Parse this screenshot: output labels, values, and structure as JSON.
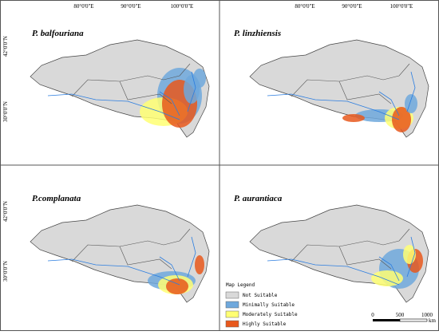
{
  "panels": [
    {
      "title": "P. balfouriana",
      "top_labels": [
        "80°0'0\"E",
        "90°0'0\"E",
        "100°0'0\"E"
      ],
      "left_labels": [
        "42°0'0\"N",
        "30°0'0\"N"
      ]
    },
    {
      "title": "P. linzhiensis",
      "top_labels": [
        "80°0'0\"E",
        "90°0'0\"E",
        "100°0'0\"E"
      ]
    },
    {
      "title": "P.complanata",
      "left_labels": [
        "42°0'0\"N",
        "30°0'0\"N"
      ]
    },
    {
      "title": "P. aurantiaca"
    }
  ],
  "legend": {
    "title": "Map Legend",
    "items": [
      {
        "label": "Not Suitable",
        "color": "#d9d9d9"
      },
      {
        "label": "Minimally Suitable",
        "color": "#6fa8dc"
      },
      {
        "label": "Moderately Suitable",
        "color": "#ffff73"
      },
      {
        "label": "Highly Suitable",
        "color": "#e8581c"
      }
    ]
  },
  "scale": {
    "labels": [
      "0",
      "500",
      "1000"
    ],
    "unit": "km"
  }
}
